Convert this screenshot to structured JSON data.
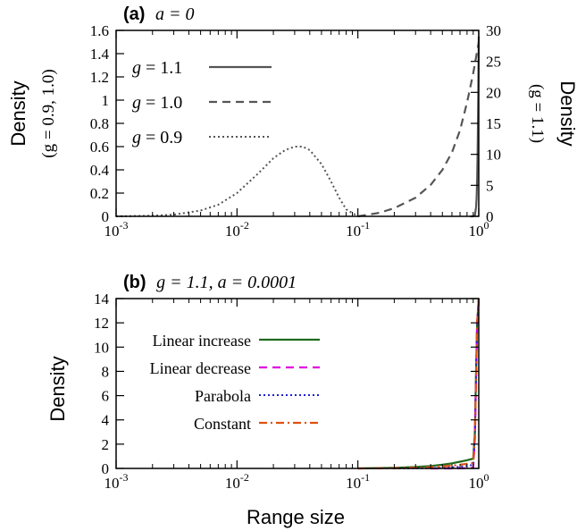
{
  "chart_data": [
    {
      "type": "line",
      "panel_label": "(a)",
      "title_expr": "a = 0",
      "xlabel": "",
      "ylabel": "Density",
      "ylabel_sub": "(g = 0.9, 1.0)",
      "y2label": "Density",
      "y2label_sub": "(g = 1.1)",
      "xscale": "log",
      "xlim": [
        0.001,
        1
      ],
      "ylim": [
        0,
        1.6
      ],
      "y2lim": [
        0,
        30
      ],
      "x_ticks": [
        {
          "base": "10",
          "exp": "-3"
        },
        {
          "base": "10",
          "exp": "-2"
        },
        {
          "base": "10",
          "exp": "-1"
        },
        {
          "base": "10",
          "exp": "0"
        }
      ],
      "y_ticks": [
        "0",
        "0.2",
        "0.4",
        "0.6",
        "0.8",
        "1",
        "1.2",
        "1.4",
        "1.6"
      ],
      "y2_ticks": [
        "0",
        "5",
        "10",
        "15",
        "20",
        "25",
        "30"
      ],
      "legend_position": "top-left",
      "series": [
        {
          "name": "g = 1.1",
          "axis": "right",
          "color": "#555555",
          "dash": "solid",
          "x": [
            0.85,
            0.9,
            0.93,
            0.95,
            0.96,
            0.97,
            0.98,
            0.99,
            1.0
          ],
          "y": [
            0,
            0,
            0.2,
            1.5,
            3,
            6,
            11,
            19,
            29
          ]
        },
        {
          "name": "g = 1.0",
          "axis": "left",
          "color": "#555555",
          "dash": "dashed",
          "x": [
            0.1,
            0.15,
            0.2,
            0.3,
            0.4,
            0.5,
            0.6,
            0.7,
            0.8,
            0.9,
            1.0
          ],
          "y": [
            0,
            0.03,
            0.07,
            0.16,
            0.27,
            0.4,
            0.55,
            0.74,
            0.98,
            1.23,
            1.5
          ]
        },
        {
          "name": "g = 0.9",
          "axis": "left",
          "color": "#555555",
          "dash": "dotted",
          "x": [
            0.001,
            0.002,
            0.003,
            0.005,
            0.007,
            0.01,
            0.015,
            0.02,
            0.025,
            0.03,
            0.035,
            0.04,
            0.05,
            0.06,
            0.07,
            0.08,
            0.1
          ],
          "y": [
            0,
            0.005,
            0.015,
            0.05,
            0.1,
            0.2,
            0.37,
            0.5,
            0.57,
            0.6,
            0.6,
            0.57,
            0.45,
            0.3,
            0.16,
            0.06,
            0
          ]
        }
      ]
    },
    {
      "type": "line",
      "panel_label": "(b)",
      "title_expr": "g = 1.1, a = 0.0001",
      "xlabel": "Range size",
      "ylabel": "Density",
      "xscale": "log",
      "xlim": [
        0.001,
        1
      ],
      "ylim": [
        0,
        14
      ],
      "x_ticks": [
        {
          "base": "10",
          "exp": "-3"
        },
        {
          "base": "10",
          "exp": "-2"
        },
        {
          "base": "10",
          "exp": "-1"
        },
        {
          "base": "10",
          "exp": "0"
        }
      ],
      "y_ticks": [
        "0",
        "2",
        "4",
        "6",
        "8",
        "10",
        "12",
        "14"
      ],
      "legend_position": "top-left",
      "series": [
        {
          "name": "Linear increase",
          "color": "#1e6b1e",
          "dash": "solid",
          "x": [
            0.1,
            0.2,
            0.3,
            0.4,
            0.5,
            0.6,
            0.7,
            0.8,
            0.9,
            0.93,
            0.95,
            0.97,
            1.0
          ],
          "y": [
            0,
            0.05,
            0.12,
            0.2,
            0.3,
            0.42,
            0.55,
            0.68,
            0.8,
            3,
            8,
            12,
            14
          ]
        },
        {
          "name": "Linear decrease",
          "color": "#e000e0",
          "dash": "dashed",
          "x": [
            0.4,
            0.6,
            0.8,
            0.9,
            0.93,
            0.95,
            0.97,
            1.0
          ],
          "y": [
            0,
            0,
            0.02,
            0.05,
            2.5,
            7.5,
            12,
            14
          ]
        },
        {
          "name": "Parabola",
          "color": "#2020d0",
          "dash": "dotted",
          "x": [
            0.2,
            0.4,
            0.6,
            0.8,
            0.9,
            0.93,
            0.95,
            0.97,
            1.0
          ],
          "y": [
            0,
            0.02,
            0.08,
            0.2,
            0.3,
            2.8,
            7.8,
            12,
            14
          ]
        },
        {
          "name": "Constant",
          "color": "#e05010",
          "dash": "dashdot",
          "x": [
            0.1,
            0.2,
            0.3,
            0.4,
            0.5,
            0.6,
            0.7,
            0.8,
            0.9,
            0.93,
            0.95,
            0.97,
            1.0
          ],
          "y": [
            0,
            0.02,
            0.06,
            0.1,
            0.16,
            0.23,
            0.3,
            0.38,
            0.45,
            2.7,
            7.7,
            12,
            14
          ]
        }
      ]
    }
  ]
}
